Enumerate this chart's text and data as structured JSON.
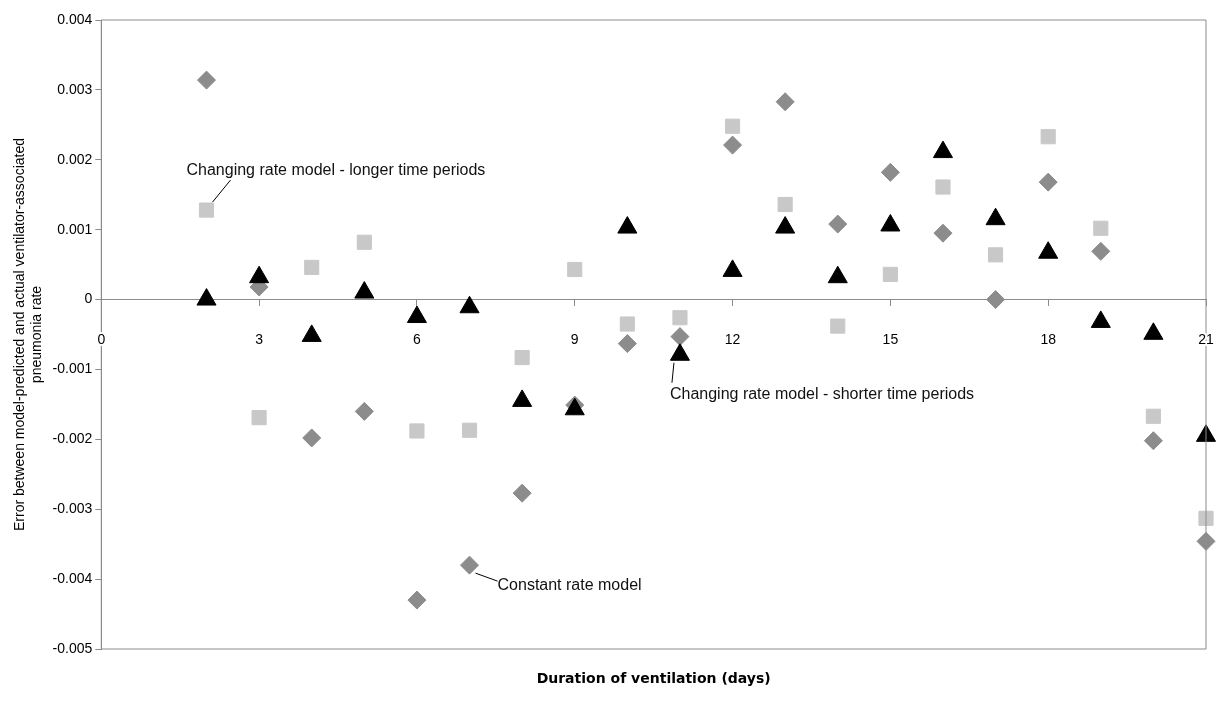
{
  "chart_data": {
    "type": "scatter",
    "xlabel": "Duration of ventilation (days)",
    "ylabel": "Error between model-predicted and actual ventilator-associated pneumonia rate",
    "x": [
      2,
      3,
      4,
      5,
      6,
      7,
      8,
      9,
      10,
      11,
      12,
      13,
      14,
      15,
      16,
      17,
      18,
      19,
      20,
      21
    ],
    "series": [
      {
        "color": "#8c8c8c",
        "marker": "diamond",
        "values": [
          0.00314,
          0.00018,
          -0.00198,
          -0.0016,
          -0.0043,
          -0.0038,
          -0.00277,
          -0.00151,
          -0.00063,
          -0.00053,
          0.00221,
          0.00283,
          0.00108,
          0.00182,
          0.00095,
          0,
          0.00168,
          0.00069,
          -0.00202,
          -0.00346
        ]
      },
      {
        "color": "#c8c8c8",
        "marker": "square",
        "values": [
          0.00128,
          -0.00169,
          0.00046,
          0.00082,
          -0.00188,
          -0.00187,
          -0.00083,
          0.00043,
          -0.00035,
          -0.00026,
          0.00248,
          0.00136,
          -0.00038,
          0.00036,
          0.00161,
          0.00064,
          0.00233,
          0.00102,
          -0.00167,
          -0.00313
        ]
      },
      {
        "color": "#000000",
        "marker": "triangle",
        "values": [
          0,
          0.00032,
          -0.00052,
          0.0001,
          -0.00025,
          -0.00011,
          -0.00145,
          -0.00157,
          0.00103,
          -0.00079,
          0.00041,
          0.00103,
          0.00032,
          0.00106,
          0.00211,
          0.00115,
          0.00067,
          -0.00032,
          -0.00049,
          -0.00195
        ]
      }
    ],
    "annotations": [
      {
        "text": "Changing rate model - longer time periods",
        "x": 2,
        "y": 0.00128
      },
      {
        "text": "Changing rate model - shorter time periods",
        "x": 11,
        "y": -0.00079
      },
      {
        "text": "Constant rate model",
        "x": 7,
        "y": -0.0038
      }
    ],
    "xlim": [
      0,
      21
    ],
    "xticks": [
      0,
      3,
      6,
      9,
      12,
      15,
      18,
      21
    ],
    "ylim": [
      -0.005,
      0.004
    ],
    "yticks": [
      -0.005,
      -0.004,
      -0.003,
      -0.002,
      -0.001,
      0,
      0.001,
      0.002,
      0.003,
      0.004
    ],
    "grid": false,
    "legend": false
  }
}
